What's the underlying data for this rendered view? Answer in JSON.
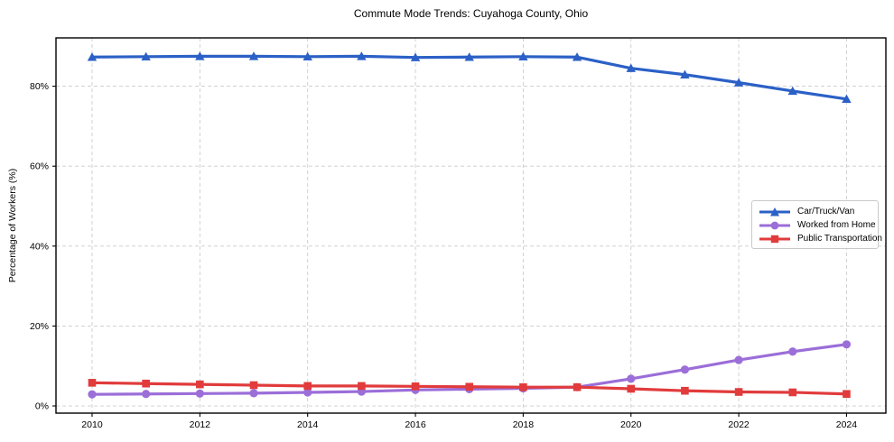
{
  "chart_data": {
    "type": "line",
    "title": "Commute Mode Trends: Cuyahoga County, Ohio",
    "xlabel": "",
    "ylabel": "Percentage of Workers (%)",
    "x": [
      2010,
      2011,
      2012,
      2013,
      2014,
      2015,
      2016,
      2017,
      2018,
      2019,
      2020,
      2021,
      2022,
      2023,
      2024
    ],
    "series": [
      {
        "name": "Car/Truck/Van",
        "color": "#2b60c6",
        "marker": "triangle",
        "values": [
          87.3,
          87.4,
          87.5,
          87.5,
          87.4,
          87.5,
          87.2,
          87.3,
          87.4,
          87.3,
          84.5,
          82.9,
          80.9,
          78.8,
          76.8
        ]
      },
      {
        "name": "Worked from Home",
        "color": "#9b6ed8",
        "marker": "circle",
        "values": [
          2.9,
          3.0,
          3.1,
          3.2,
          3.4,
          3.6,
          4.0,
          4.2,
          4.4,
          4.7,
          6.8,
          9.1,
          11.5,
          13.6,
          15.4
        ]
      },
      {
        "name": "Public Transportation",
        "color": "#e13b3c",
        "marker": "square",
        "values": [
          5.8,
          5.6,
          5.4,
          5.2,
          5.0,
          5.0,
          4.9,
          4.8,
          4.7,
          4.7,
          4.3,
          3.8,
          3.5,
          3.4,
          3.0
        ]
      }
    ],
    "xlim": [
      2009.33,
      2024.73
    ],
    "ylim": [
      -1.8,
      92.1
    ],
    "xticks": {
      "values": [
        2010,
        2012,
        2014,
        2016,
        2018,
        2020,
        2022,
        2024
      ],
      "labels": [
        "2010",
        "2012",
        "2014",
        "2016",
        "2018",
        "2020",
        "2022",
        "2024"
      ]
    },
    "yticks": {
      "values": [
        0,
        20,
        40,
        60,
        80
      ],
      "labels": [
        "0%",
        "20%",
        "40%",
        "60%",
        "80%"
      ]
    },
    "grid": "dashed",
    "grid_color": "#cccccc",
    "spine_color": "#000000",
    "legend": {
      "position": "center-right",
      "items": [
        "Car/Truck/Van",
        "Worked from Home",
        "Public Transportation"
      ]
    }
  }
}
